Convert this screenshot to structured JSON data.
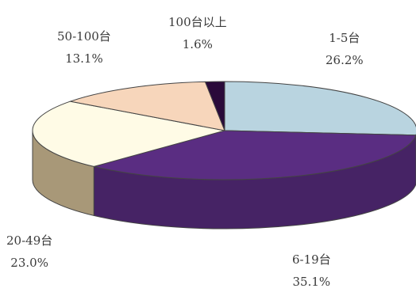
{
  "chart_data": {
    "type": "pie",
    "style": "3d",
    "title": "",
    "slices": [
      {
        "label": "1-5台",
        "value": 26.2,
        "value_label": "26.2%",
        "color": "#b9d4e0"
      },
      {
        "label": "6-19台",
        "value": 35.1,
        "value_label": "35.1%",
        "color": "#5a2d82"
      },
      {
        "label": "20-49台",
        "value": 23.0,
        "value_label": "23.0%",
        "color": "#fffbe6"
      },
      {
        "label": "50-100台",
        "value": 13.1,
        "value_label": "13.1%",
        "color": "#f7d6bb"
      },
      {
        "label": "100台以上",
        "value": 1.6,
        "value_label": "1.6%",
        "color": "#2a0a3a"
      }
    ],
    "legend": "none"
  }
}
